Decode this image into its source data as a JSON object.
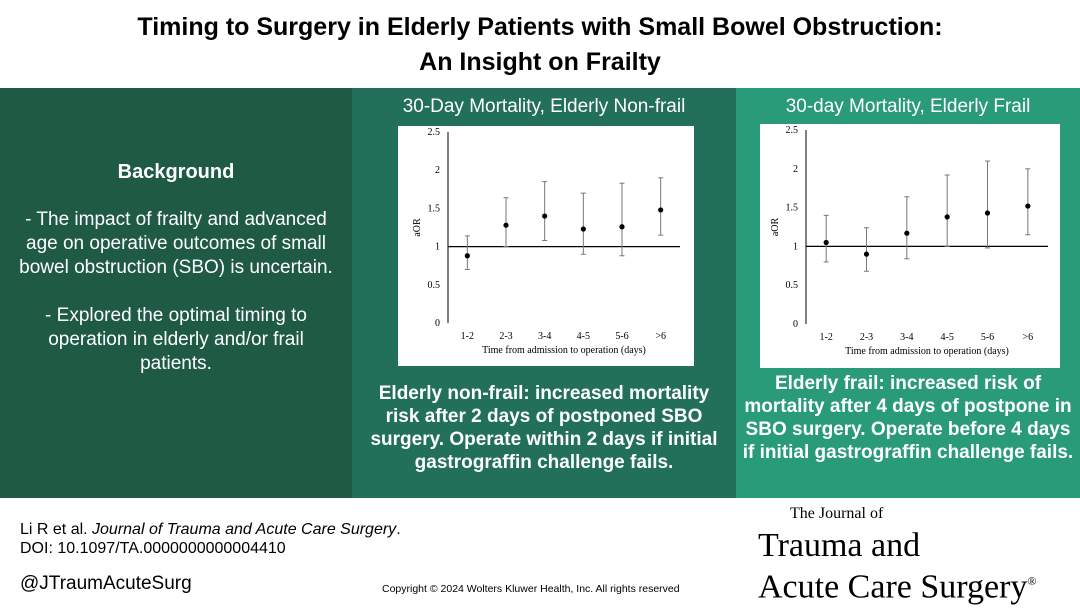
{
  "title": {
    "line1": "Timing to Surgery in Elderly Patients with Small Bowel Obstruction:",
    "line2": "An Insight on Frailty"
  },
  "background": {
    "heading": "Background",
    "item1": "- The impact of frailty and advanced age on operative outcomes of small bowel obstruction (SBO) is uncertain.",
    "item2": "- Explored the optimal timing to operation in elderly and/or frail patients."
  },
  "panel_nonfrail": {
    "title": "30-Day Mortality, Elderly Non-frail",
    "caption": "Elderly non-frail: increased mortality risk after 2 days of postponed SBO surgery. Operate within 2 days if initial gastrograffin challenge fails."
  },
  "panel_frail": {
    "title": "30-day Mortality, Elderly Frail",
    "caption": "Elderly frail: increased risk of mortality after 4 days of postpone in SBO surgery. Operate before 4 days if initial gastrograffin challenge fails."
  },
  "chart_data": [
    {
      "type": "scatter",
      "title": "30-Day Mortality, Elderly Non-frail",
      "xlabel": "Time from admission to operation (days)",
      "ylabel": "aOR",
      "categories": [
        "1-2",
        "2-3",
        "3-4",
        "4-5",
        "5-6",
        ">6"
      ],
      "values": [
        0.88,
        1.28,
        1.4,
        1.23,
        1.26,
        1.48
      ],
      "ci_low": [
        0.7,
        1.0,
        1.08,
        0.9,
        0.88,
        1.15
      ],
      "ci_high": [
        1.14,
        1.64,
        1.85,
        1.7,
        1.83,
        1.9
      ],
      "yticks": [
        "0",
        "0.5",
        "1",
        "1.5",
        "2",
        "2.5"
      ],
      "ylim": [
        0,
        2.5
      ],
      "reference_line": 1
    },
    {
      "type": "scatter",
      "title": "30-day Mortality, Elderly Frail",
      "xlabel": "Time from admission to operation (days)",
      "ylabel": "aOR",
      "categories": [
        "1-2",
        "2-3",
        "3-4",
        "4-5",
        "5-6",
        ">6"
      ],
      "values": [
        1.05,
        0.9,
        1.17,
        1.38,
        1.43,
        1.52
      ],
      "ci_low": [
        0.8,
        0.68,
        0.84,
        1.0,
        0.98,
        1.15
      ],
      "ci_high": [
        1.4,
        1.24,
        1.64,
        1.92,
        2.1,
        2.0
      ],
      "yticks": [
        "0",
        "0.5",
        "1",
        "1.5",
        "2",
        "2.5"
      ],
      "ylim": [
        0,
        2.5
      ],
      "reference_line": 1
    }
  ],
  "footer": {
    "citation_authors": "Li R et al. ",
    "citation_journal": "Journal of Trauma and Acute Care Surgery",
    "citation_end": ".",
    "doi": "DOI: 10.1097/TA.0000000000004410",
    "handle": "@JTraumAcuteSurg",
    "copyright": "Copyright © 2024  Wolters Kluwer Health, Inc. All rights reserved"
  },
  "logo": {
    "line1": "The Journal of",
    "line2": "Trauma and",
    "line3": "Acute Care Surgery",
    "mark": "®"
  }
}
